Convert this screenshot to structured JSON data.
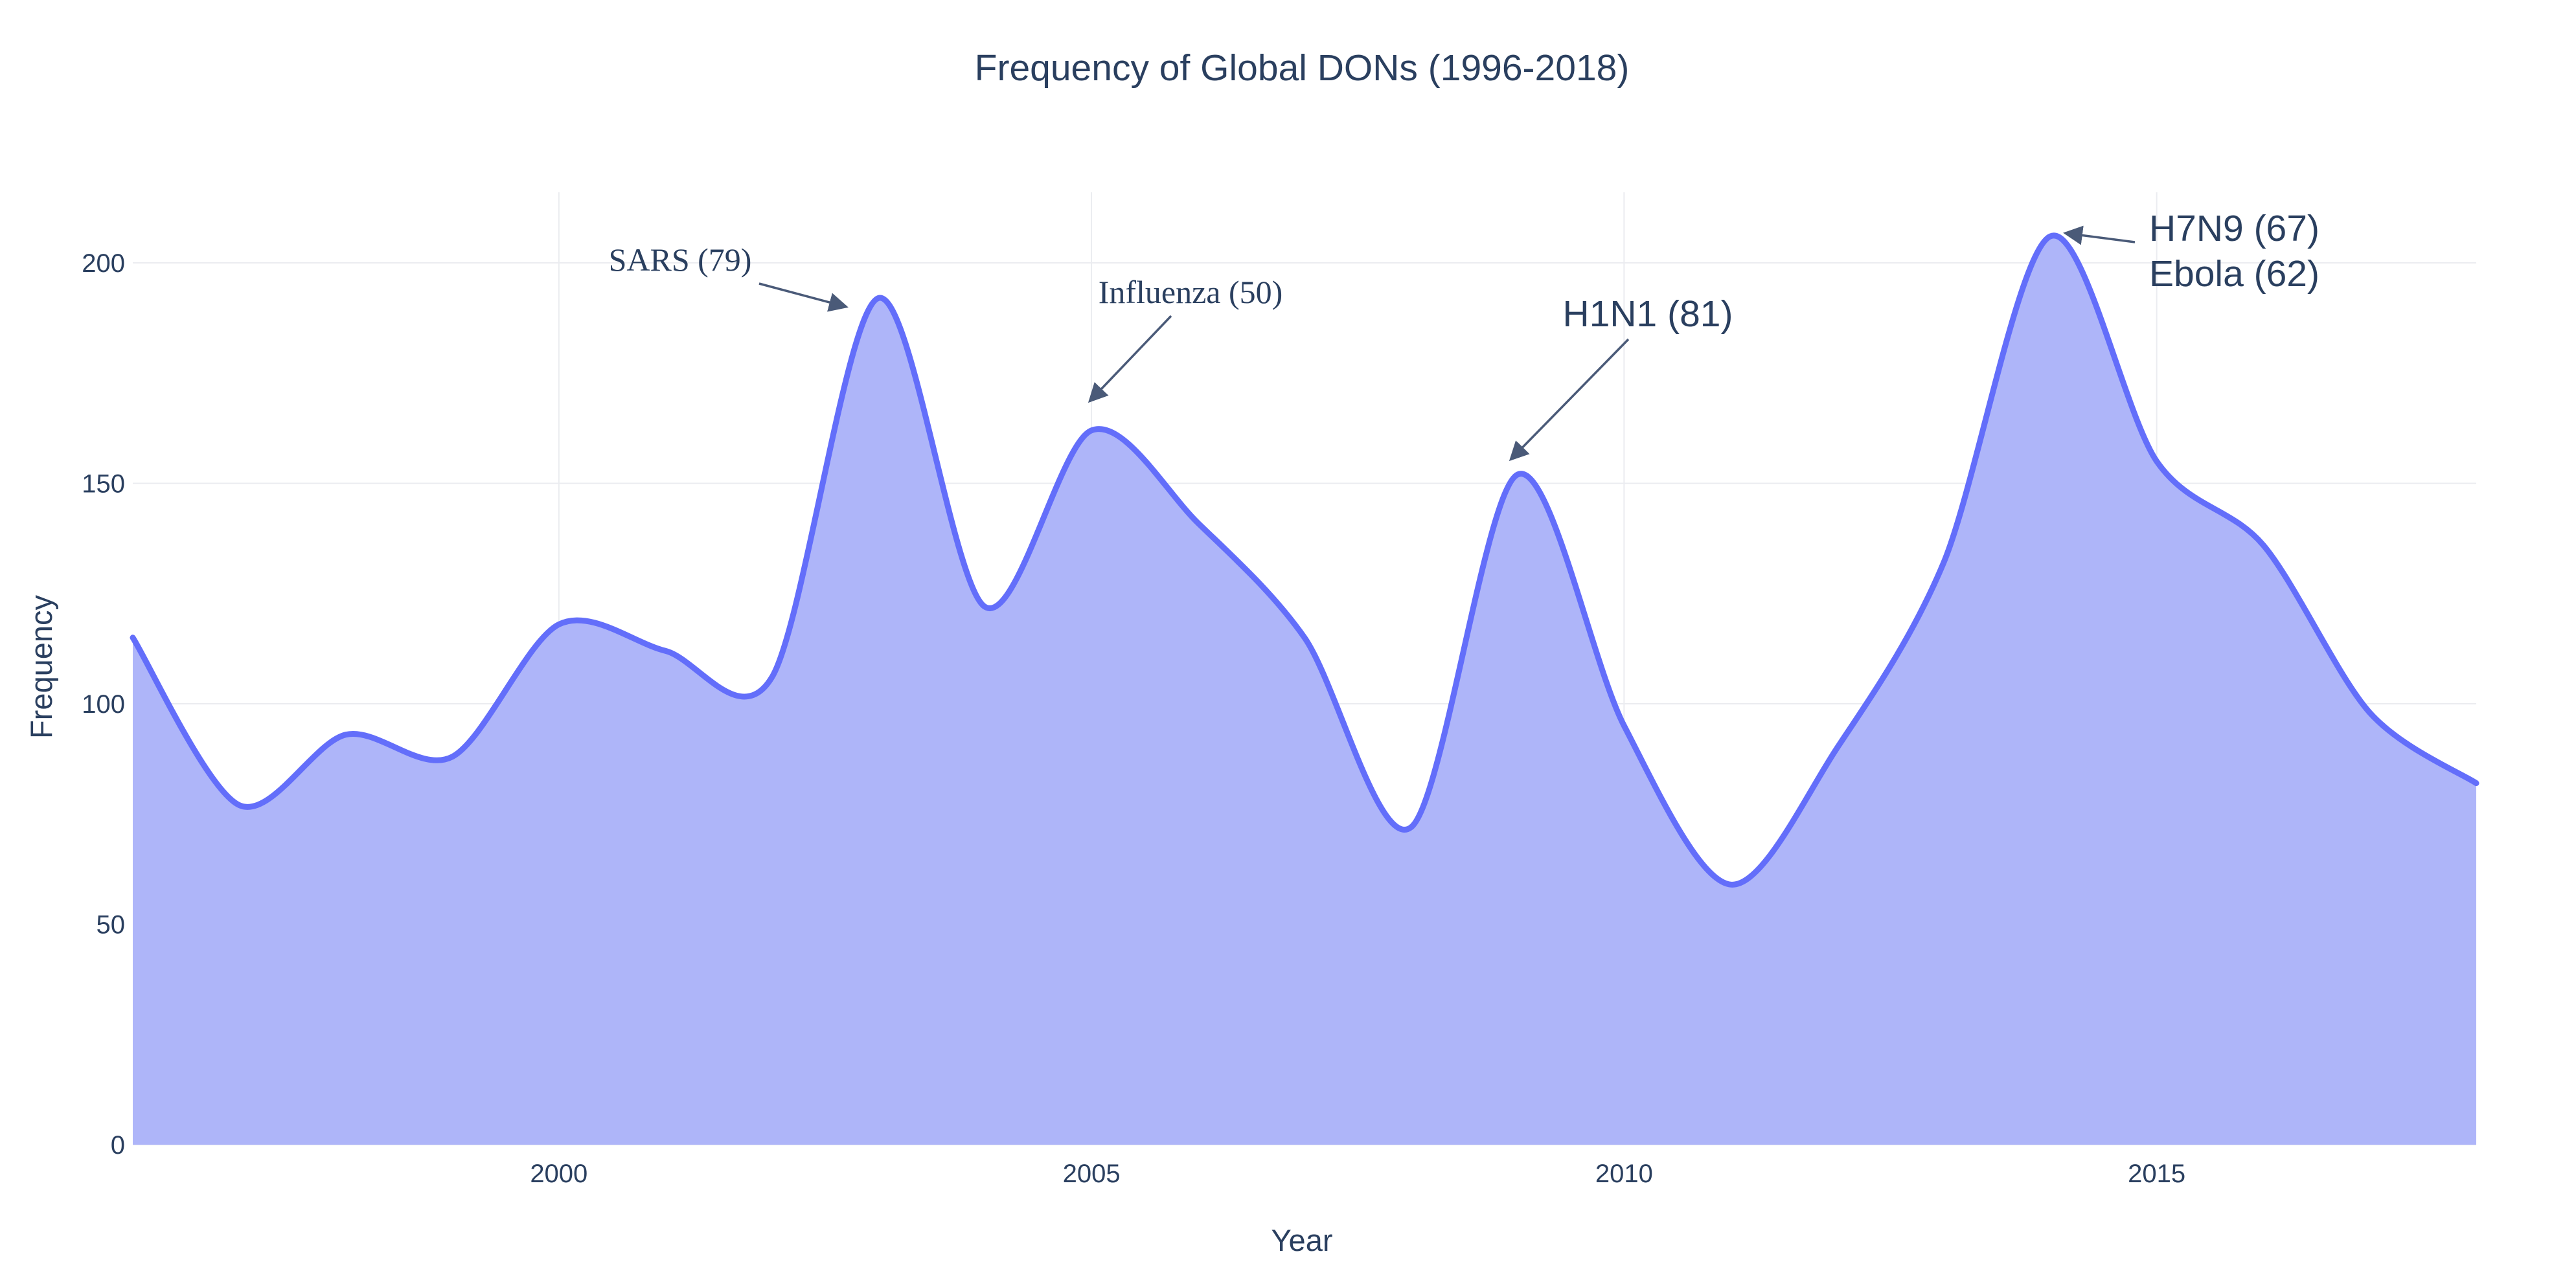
{
  "chart_data": {
    "type": "area",
    "title": "Frequency of Global DONs (1996-2018)",
    "xlabel": "Year",
    "ylabel": "Frequency",
    "xlim": [
      1996,
      2018
    ],
    "ylim": [
      0,
      216
    ],
    "grid": true,
    "x_ticks": [
      2000,
      2005,
      2010,
      2015
    ],
    "y_ticks": [
      0,
      50,
      100,
      150,
      200
    ],
    "x": [
      1996,
      1997,
      1998,
      1999,
      2000,
      2001,
      2002,
      2003,
      2004,
      2005,
      2006,
      2007,
      2008,
      2009,
      2010,
      2011,
      2012,
      2013,
      2014,
      2015,
      2016,
      2017,
      2018
    ],
    "values": [
      115,
      77,
      93,
      88,
      118,
      112,
      106,
      192,
      122,
      162,
      141,
      115,
      72,
      152,
      95,
      59,
      90,
      132,
      206,
      155,
      136,
      98,
      82
    ],
    "colors": {
      "line": "#636efa",
      "fill": "#aeb5f9",
      "text": "#2a3f5f",
      "grid": "#ebecf0",
      "annotation_arrow": "#4a5a78"
    },
    "annotations": [
      {
        "text": "SARS (79)",
        "x": 2003,
        "y": 192
      },
      {
        "text": "Influenza (50)",
        "x": 2005,
        "y": 167
      },
      {
        "text": "H1N1 (81)",
        "x": 2009,
        "y": 155
      },
      {
        "text": "H7N9 (67)",
        "x": 2014,
        "y": 207
      },
      {
        "text": "Ebola (62)",
        "x": 2014,
        "y": 207
      }
    ]
  }
}
